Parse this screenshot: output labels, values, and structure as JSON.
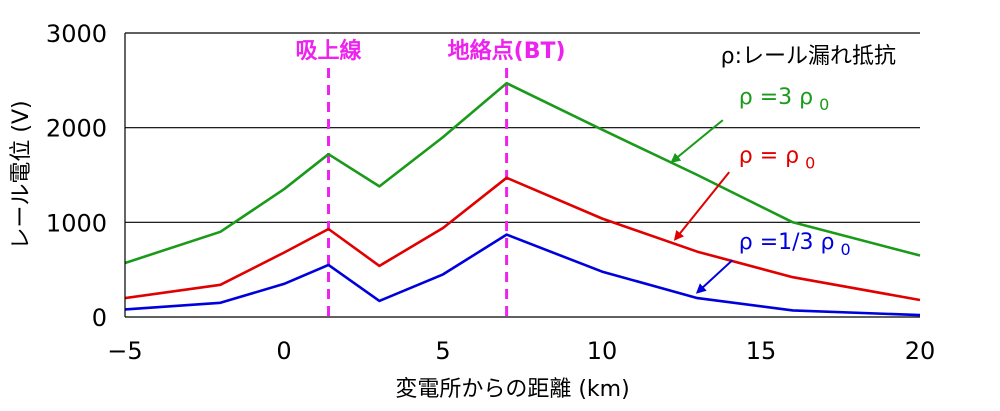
{
  "chart_data": {
    "type": "line",
    "xlabel": "変電所からの距離 (km)",
    "ylabel": "レール電位 (V)",
    "xlim": [
      -5,
      20
    ],
    "ylim": [
      0,
      3000
    ],
    "xticks": [
      -5,
      0,
      5,
      10,
      15,
      20
    ],
    "yticks": [
      0,
      1000,
      2000,
      3000
    ],
    "xtick_labels": [
      "−5",
      "0",
      "5",
      "10",
      "15",
      "20"
    ],
    "ytick_labels": [
      "0",
      "1000",
      "2000",
      "3000"
    ],
    "grid": "horizontal",
    "note": "ρ:レール漏れ抵抗",
    "vlines": [
      {
        "x": 1.4,
        "label": "吸上線",
        "color": "#ee22ee"
      },
      {
        "x": 7.0,
        "label": "地絡点(BT)",
        "color": "#ee22ee"
      }
    ],
    "series": [
      {
        "name": "ρ =3 ρ 0",
        "label_main": "ρ =3 ρ",
        "label_sub": "0",
        "color": "#1a9a1a",
        "points": [
          [
            -5,
            570
          ],
          [
            -2,
            900
          ],
          [
            0,
            1350
          ],
          [
            1.4,
            1720
          ],
          [
            3,
            1380
          ],
          [
            5,
            1900
          ],
          [
            7,
            2470
          ],
          [
            10,
            1980
          ],
          [
            13,
            1500
          ],
          [
            16,
            1000
          ],
          [
            20,
            650
          ]
        ],
        "label_at": [
          14.3,
          2250
        ],
        "arrow_from": [
          13.8,
          2080
        ],
        "arrow_to": [
          12.2,
          1640
        ]
      },
      {
        "name": "ρ = ρ 0",
        "label_main": "ρ = ρ",
        "label_sub": "0",
        "color": "#e00000",
        "points": [
          [
            -5,
            200
          ],
          [
            -2,
            340
          ],
          [
            0,
            680
          ],
          [
            1.4,
            930
          ],
          [
            3,
            540
          ],
          [
            5,
            940
          ],
          [
            7,
            1470
          ],
          [
            10,
            1040
          ],
          [
            13,
            690
          ],
          [
            16,
            420
          ],
          [
            20,
            180
          ]
        ],
        "label_at": [
          14.3,
          1630
        ],
        "arrow_from": [
          14.0,
          1530
        ],
        "arrow_to": [
          12.3,
          820
        ]
      },
      {
        "name": "ρ =1/3 ρ 0",
        "label_main": "ρ =1/3 ρ",
        "label_sub": "0",
        "color": "#0000dd",
        "points": [
          [
            -5,
            80
          ],
          [
            -2,
            150
          ],
          [
            0,
            350
          ],
          [
            1.4,
            550
          ],
          [
            3,
            170
          ],
          [
            5,
            450
          ],
          [
            7,
            870
          ],
          [
            10,
            480
          ],
          [
            13,
            200
          ],
          [
            16,
            70
          ],
          [
            20,
            20
          ]
        ],
        "label_at": [
          14.3,
          720
        ],
        "arrow_from": [
          14.1,
          600
        ],
        "arrow_to": [
          13.0,
          260
        ]
      }
    ]
  }
}
